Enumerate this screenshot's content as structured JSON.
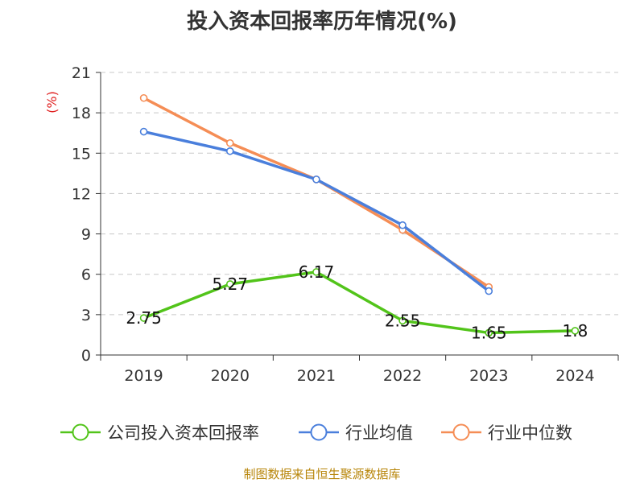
{
  "title": "投入资本回报率历年情况(%)",
  "source": "制图数据来自恒生聚源数据库",
  "chart_data": {
    "type": "line",
    "title": "投入资本回报率历年情况(%)",
    "ylabel": "(%)",
    "xlabel": "",
    "categories": [
      "2019",
      "2020",
      "2021",
      "2022",
      "2023",
      "2024"
    ],
    "yticks": [
      0,
      3,
      6,
      9,
      12,
      15,
      18,
      21
    ],
    "ylim": [
      0,
      21
    ],
    "grid": true,
    "legend_position": "bottom",
    "series": [
      {
        "name": "公司投入资本回报率",
        "color": "#52c41a",
        "values": [
          2.75,
          5.27,
          6.17,
          2.55,
          1.65,
          1.8
        ],
        "labels": [
          "2.75",
          "5.27",
          "6.17",
          "2.55",
          "1.65",
          "1.8"
        ]
      },
      {
        "name": "行业均值",
        "color": "#4a7fdc",
        "values": [
          16.6,
          15.15,
          13.05,
          9.65,
          4.75,
          null
        ]
      },
      {
        "name": "行业中位数",
        "color": "#f58d55",
        "values": [
          19.1,
          15.75,
          13.05,
          9.3,
          5.05,
          null
        ]
      }
    ]
  }
}
